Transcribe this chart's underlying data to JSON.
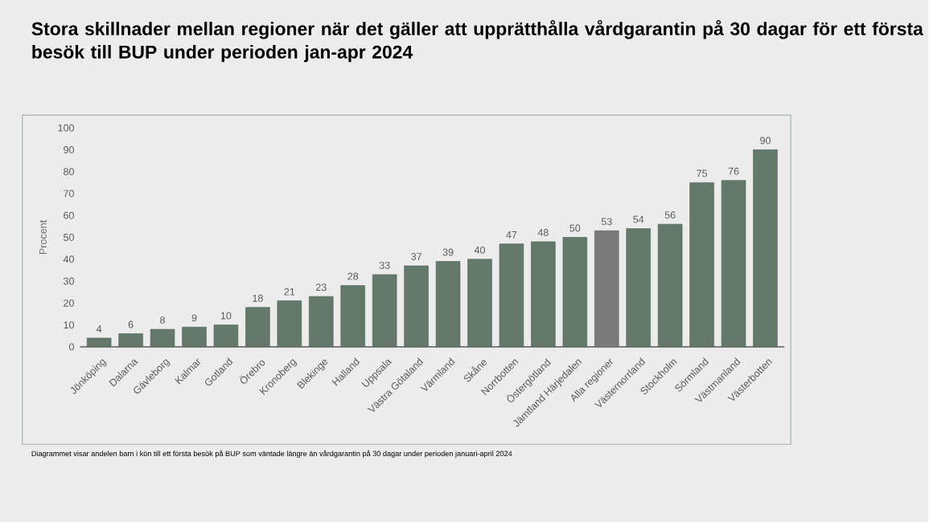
{
  "chart_data": {
    "type": "bar",
    "title": "Stora skillnader mellan regioner när det gäller att upprätthålla vårdgarantin på 30 dagar för ett första besök till  BUP under perioden jan-apr 2024",
    "ylabel": "Procent",
    "categories": [
      "Jönköping",
      "Dalarna",
      "Gävleborg",
      "Kalmar",
      "Gotland",
      "Örebro",
      "Kronoberg",
      "Blekinge",
      "Halland",
      "Uppsala",
      "Västra Götaland",
      "Värmland",
      "Skåne",
      "Norrbotten",
      "Östergötland",
      "Jämtland Härjedalen",
      "Alla regioner",
      "Västernorrland",
      "Stockholm",
      "Sörmland",
      "Västmanland",
      "Västerbotten"
    ],
    "values": [
      4,
      6,
      8,
      9,
      10,
      18,
      21,
      23,
      28,
      33,
      37,
      39,
      40,
      47,
      48,
      50,
      53,
      54,
      56,
      75,
      76,
      90
    ],
    "colors": [
      "#64786c",
      "#64786c",
      "#64786c",
      "#64786c",
      "#64786c",
      "#64786c",
      "#64786c",
      "#64786c",
      "#64786c",
      "#64786c",
      "#64786c",
      "#64786c",
      "#64786c",
      "#64786c",
      "#64786c",
      "#64786c",
      "#7a7a7a",
      "#64786c",
      "#64786c",
      "#64786c",
      "#64786c",
      "#64786c"
    ],
    "ylim": [
      0,
      100
    ],
    "yticks": [
      0,
      10,
      20,
      30,
      40,
      50,
      60,
      70,
      80,
      90,
      100
    ],
    "data_labels": true,
    "annotations": [
      "Diagrammet visar andelen barn i kön till ett första besök på BUP som väntade längre än vårdgarantin på 30 dagar under perioden januari-april 2024"
    ]
  }
}
